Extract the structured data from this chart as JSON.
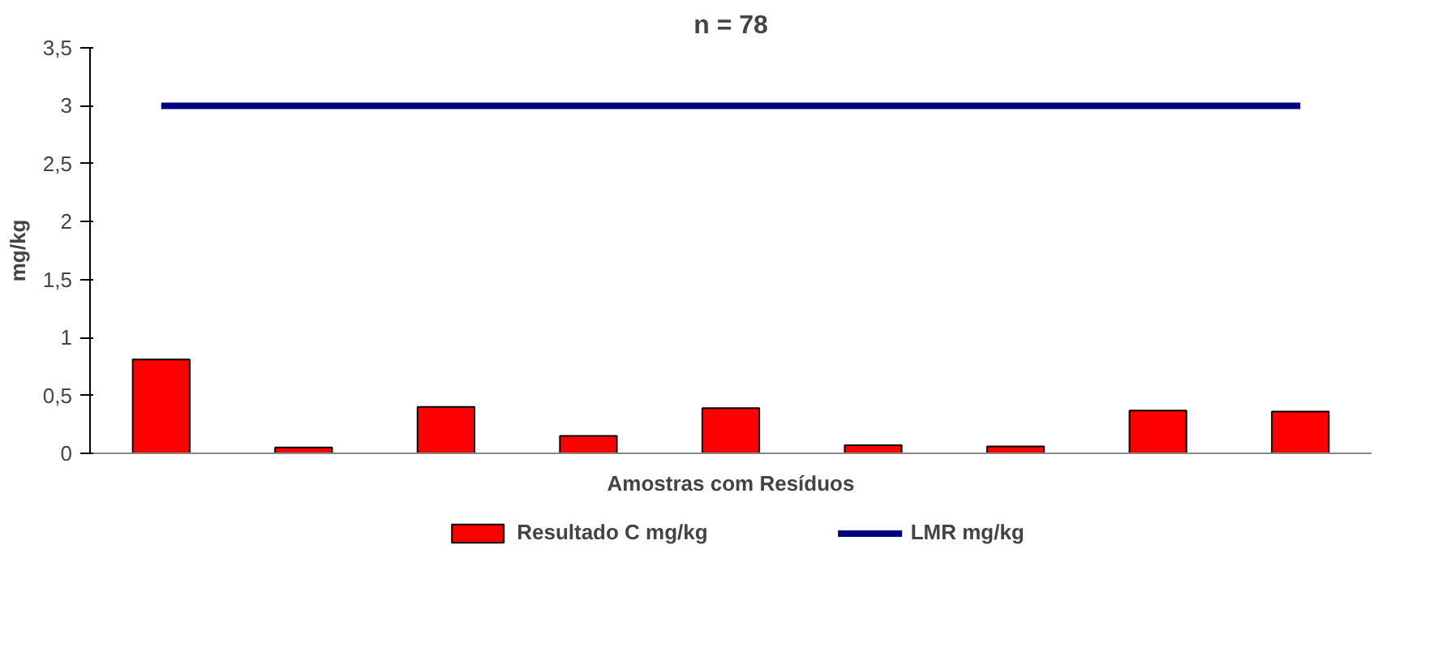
{
  "chart_data": {
    "type": "bar",
    "title": "n = 78",
    "xlabel": "Amostras com Resíduos",
    "ylabel": "mg/kg",
    "categories": [
      null,
      null,
      null,
      null,
      null,
      null,
      null,
      null,
      null
    ],
    "series": [
      {
        "name": "Resultado C mg/kg",
        "color": "#ff0000",
        "values": [
          0.81,
          0.05,
          0.4,
          0.15,
          0.39,
          0.07,
          0.06,
          0.37,
          0.36
        ]
      },
      {
        "name": "LMR mg/kg",
        "type": "line",
        "color": "#000080",
        "values": [
          3,
          3,
          3,
          3,
          3,
          3,
          3,
          3,
          3
        ]
      }
    ],
    "ylim": [
      0,
      3.5
    ],
    "yticks": [
      0,
      {
        "value": 0.5,
        "label": "0,5"
      },
      1,
      {
        "value": 1.5,
        "label": "1,5"
      },
      2,
      {
        "value": 2.5,
        "label": "2,5"
      },
      3,
      {
        "value": 3.5,
        "label": "3,5"
      }
    ],
    "grid": false,
    "legend": "bottom"
  }
}
